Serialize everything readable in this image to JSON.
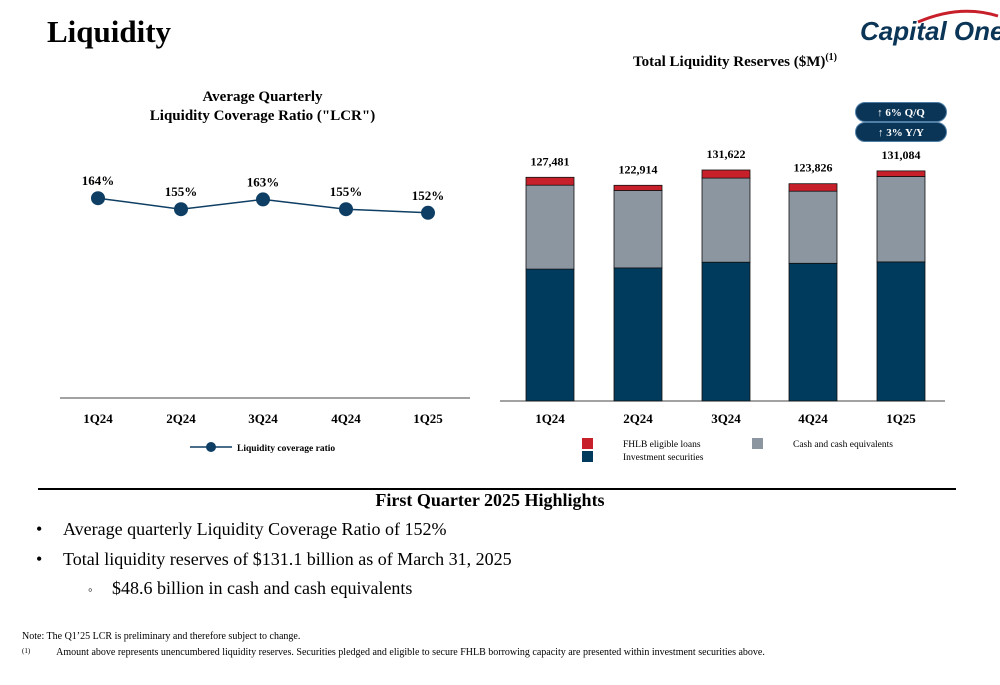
{
  "page": {
    "title": "Liquidity",
    "logo_text": "Capital One"
  },
  "lcr_chart": {
    "title_line1": "Average Quarterly",
    "title_line2": "Liquidity Coverage Ratio (\"LCR\")",
    "legend_label": "Liquidity coverage ratio"
  },
  "reserves_chart": {
    "title": "Total Liquidity Reserves ($M)",
    "title_sup": "(1)",
    "badge_qq": "↑ 6% Q/Q",
    "badge_yy": "↑ 3% Y/Y",
    "legend": {
      "fhlb": "FHLB eligible loans",
      "cash": "Cash and cash equivalents",
      "invest": "Investment securities"
    }
  },
  "colors": {
    "fhlb": "#c8202b",
    "cash": "#8c96a1",
    "invest": "#003a5d",
    "line": "#0e3e63",
    "badge": "#0b3557"
  },
  "chart_data": [
    {
      "type": "line",
      "categories": [
        "1Q24",
        "2Q24",
        "3Q24",
        "4Q24",
        "1Q25"
      ],
      "series": [
        {
          "name": "Liquidity coverage ratio",
          "values": [
            164,
            155,
            163,
            155,
            152
          ]
        }
      ],
      "data_labels": [
        "164%",
        "155%",
        "163%",
        "155%",
        "152%"
      ],
      "ylim": [
        0,
        220
      ],
      "grid": false,
      "legend": "bottom"
    },
    {
      "type": "bar",
      "stacked": true,
      "categories": [
        "1Q24",
        "2Q24",
        "3Q24",
        "4Q24",
        "1Q25"
      ],
      "series": [
        {
          "name": "Investment securities",
          "values": [
            75150,
            75874,
            79100,
            78460,
            79270
          ]
        },
        {
          "name": "Cash and cash equivalents",
          "values": [
            47840,
            44086,
            47932,
            41120,
            48600
          ]
        },
        {
          "name": "FHLB eligible loans",
          "values": [
            4491,
            2954,
            4590,
            4246,
            3214
          ]
        }
      ],
      "totals": [
        127481,
        122914,
        131622,
        123826,
        131084
      ],
      "total_labels": [
        "127,481",
        "122,914",
        "131,622",
        "123,826",
        "131,084"
      ],
      "ylim": [
        0,
        136000
      ],
      "grid": false,
      "legend": "bottom"
    }
  ],
  "highlights": {
    "title": "First Quarter 2025 Highlights",
    "bullet1": "Average quarterly Liquidity Coverage Ratio of 152%",
    "bullet2": "Total liquidity reserves of $131.1 billion as of March 31, 2025",
    "sub_bullet": "$48.6 billion in cash and cash equivalents"
  },
  "footer": {
    "note": "Note: The Q1’25 LCR is preliminary and therefore subject to change.",
    "footnote_marker": "(1)",
    "footnote": "Amount above represents unencumbered liquidity reserves. Securities pledged and eligible to secure FHLB borrowing capacity are presented within investment securities above."
  }
}
